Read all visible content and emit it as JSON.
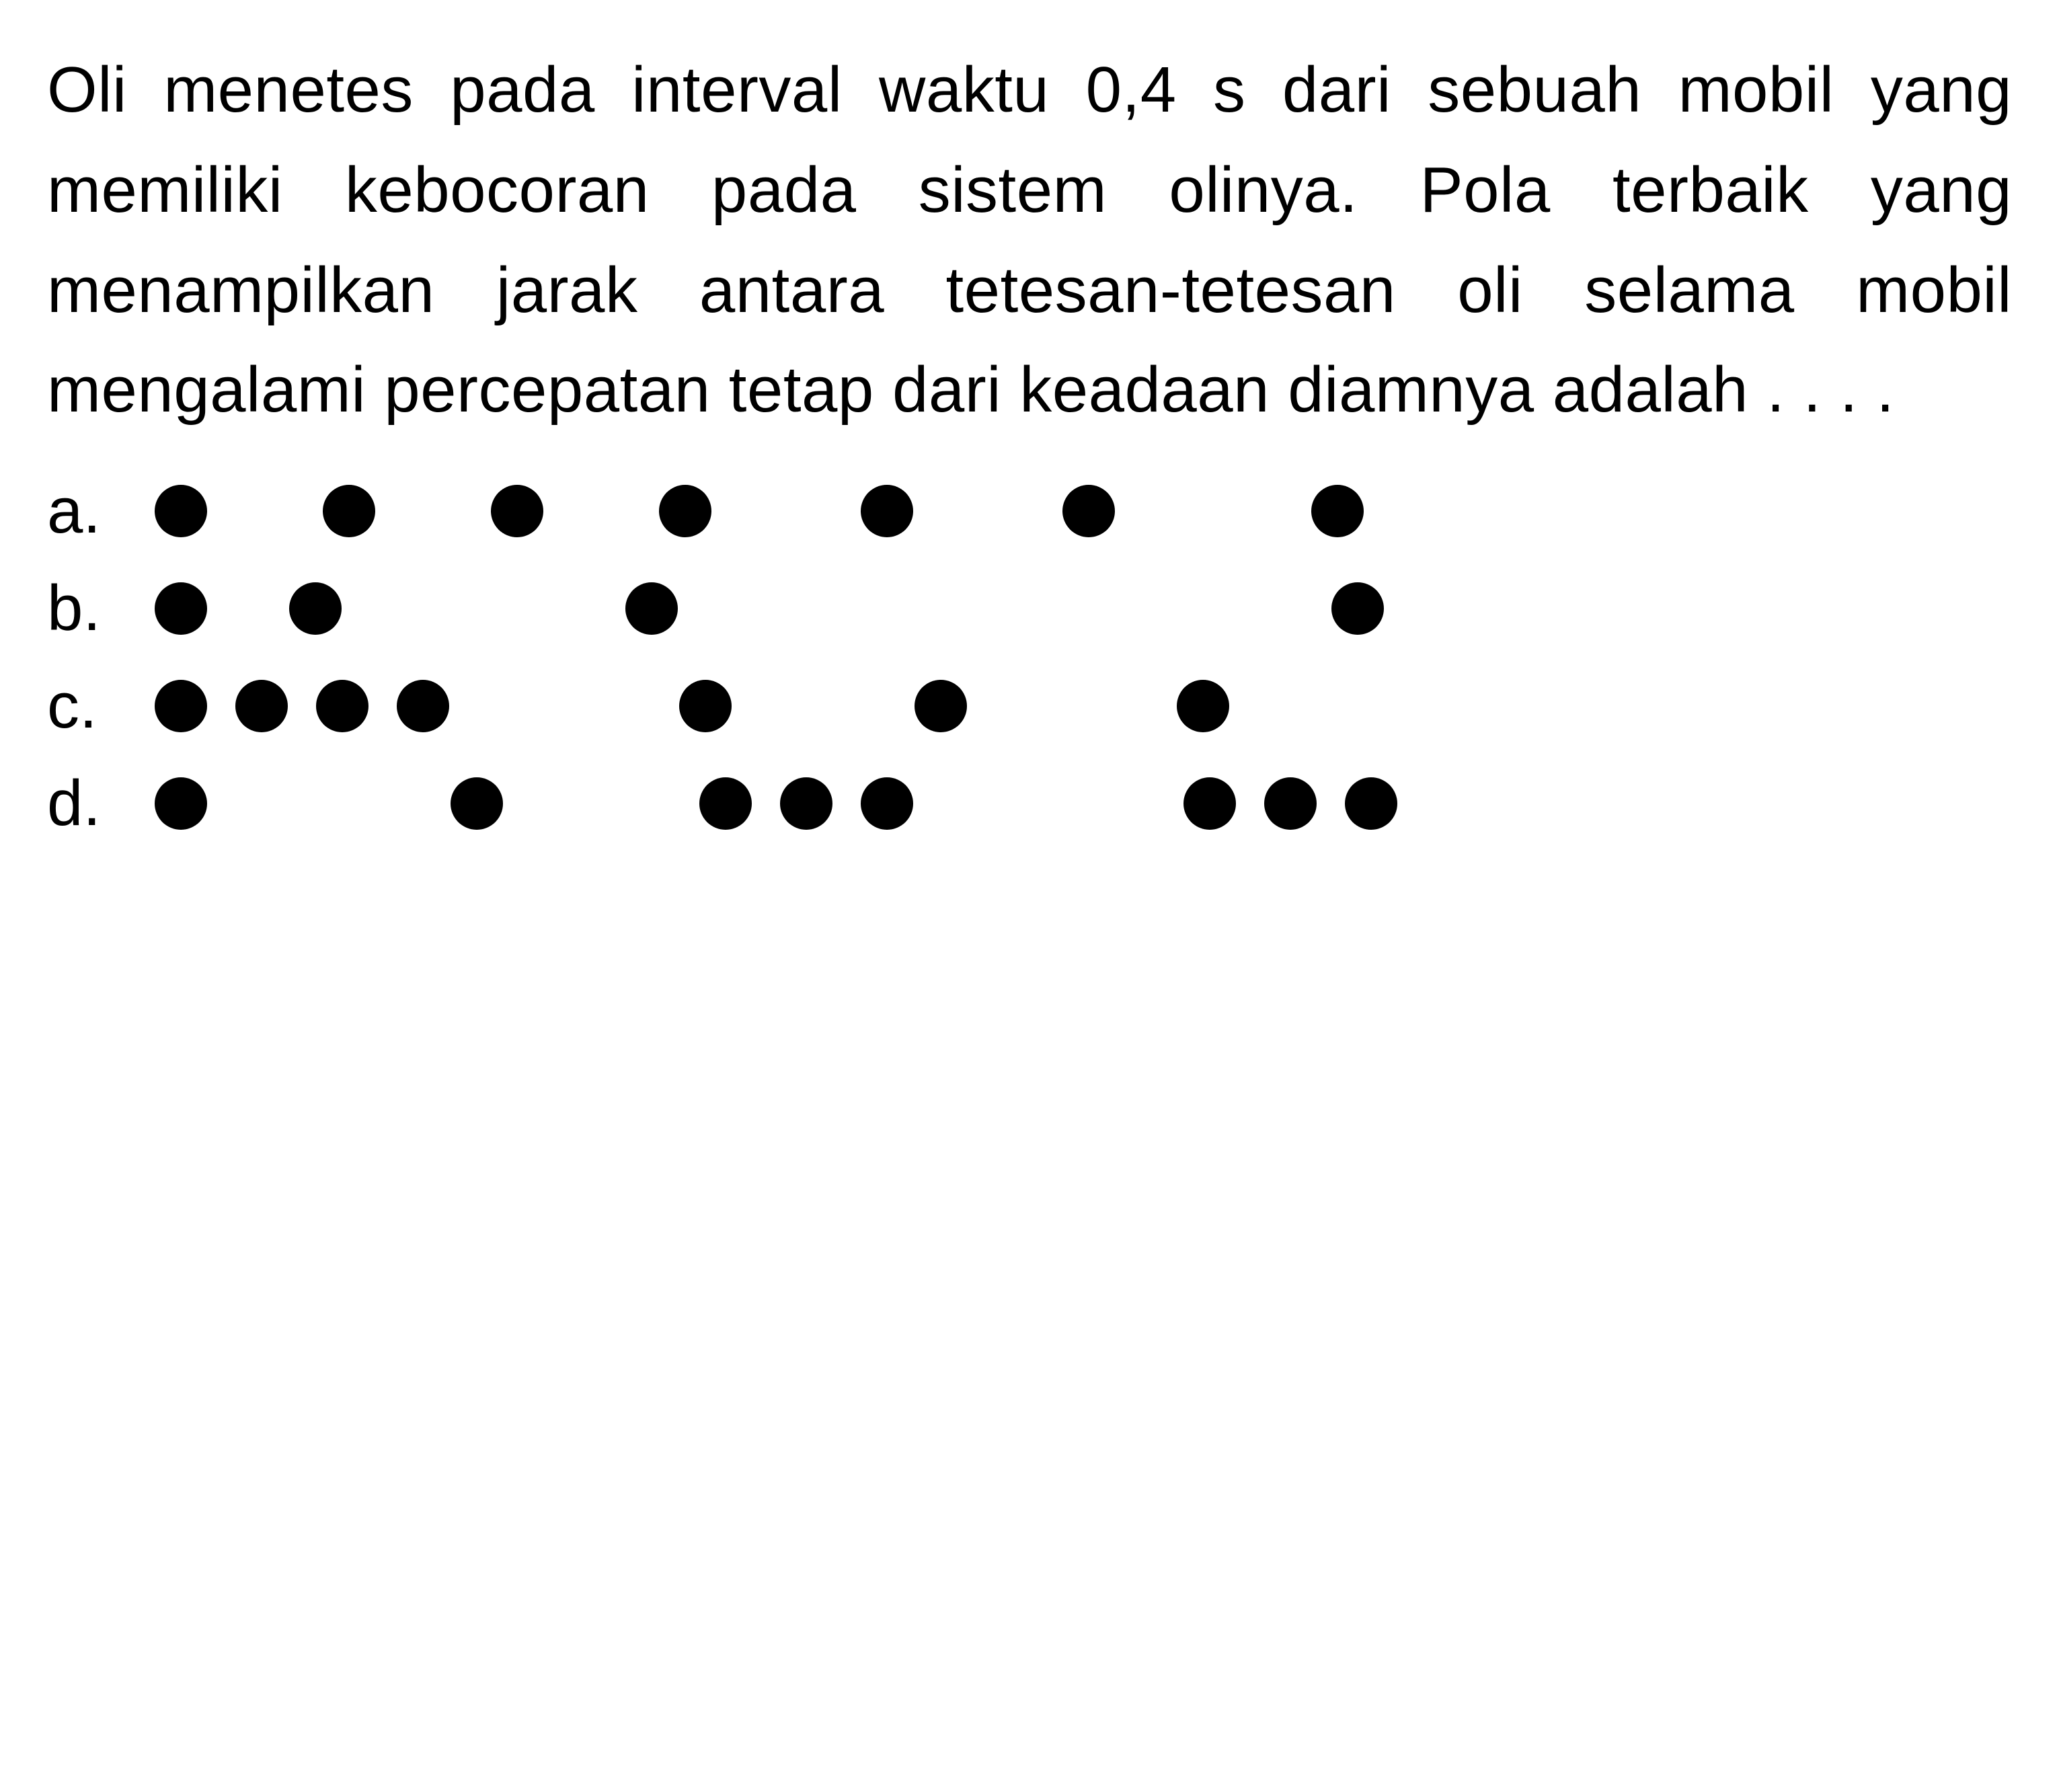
{
  "question": {
    "text": "Oli menetes pada interval waktu 0,4 s dari sebuah mobil yang memiliki kebocoran pada sistem olinya. Pola terbaik yang menampilkan jarak antara tetesan-tetesan oli selama mobil mengalami percepatan tetap dari keadaan diamnya adalah . . . .",
    "text_color": "#000000",
    "fontsize": 96,
    "line_height": 1.55,
    "background_color": "#ffffff"
  },
  "options": {
    "labels": [
      "a.",
      "b.",
      "c.",
      "d."
    ],
    "label_fontsize": 96,
    "label_color": "#000000",
    "dot_color": "#000000",
    "dot_diameter": 78,
    "patterns": [
      {
        "type": "dot-pattern",
        "positions": [
          0,
          250,
          500,
          750,
          1050,
          1350,
          1720
        ]
      },
      {
        "type": "dot-pattern",
        "positions": [
          0,
          200,
          700,
          1750
        ]
      },
      {
        "type": "dot-pattern",
        "positions": [
          0,
          120,
          240,
          360,
          780,
          1130,
          1520
        ]
      },
      {
        "type": "dot-pattern",
        "positions": [
          0,
          440,
          810,
          930,
          1050,
          1530,
          1650,
          1770
        ]
      }
    ]
  }
}
